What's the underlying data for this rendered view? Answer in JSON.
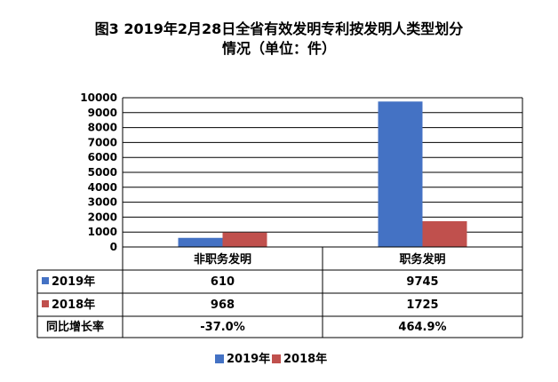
{
  "chart_data": {
    "type": "bar",
    "title_line1": "图3  2019年2月28日全省有效发明专利按发明人类型划分",
    "title_line2": "情况（单位：件）",
    "categories": [
      "非职务发明",
      "职务发明"
    ],
    "series": [
      {
        "name": "2019年",
        "color": "#4472C4",
        "values": [
          610,
          9745
        ]
      },
      {
        "name": "2018年",
        "color": "#C0504D",
        "values": [
          968,
          1725
        ]
      }
    ],
    "growth_label": "同比增长率",
    "growth": [
      "-37.0%",
      "464.9%"
    ],
    "ylim": [
      0,
      10000
    ],
    "yticks": [
      0,
      1000,
      2000,
      3000,
      4000,
      5000,
      6000,
      7000,
      8000,
      9000,
      10000
    ],
    "grid": true,
    "legend_position": "bottom"
  }
}
